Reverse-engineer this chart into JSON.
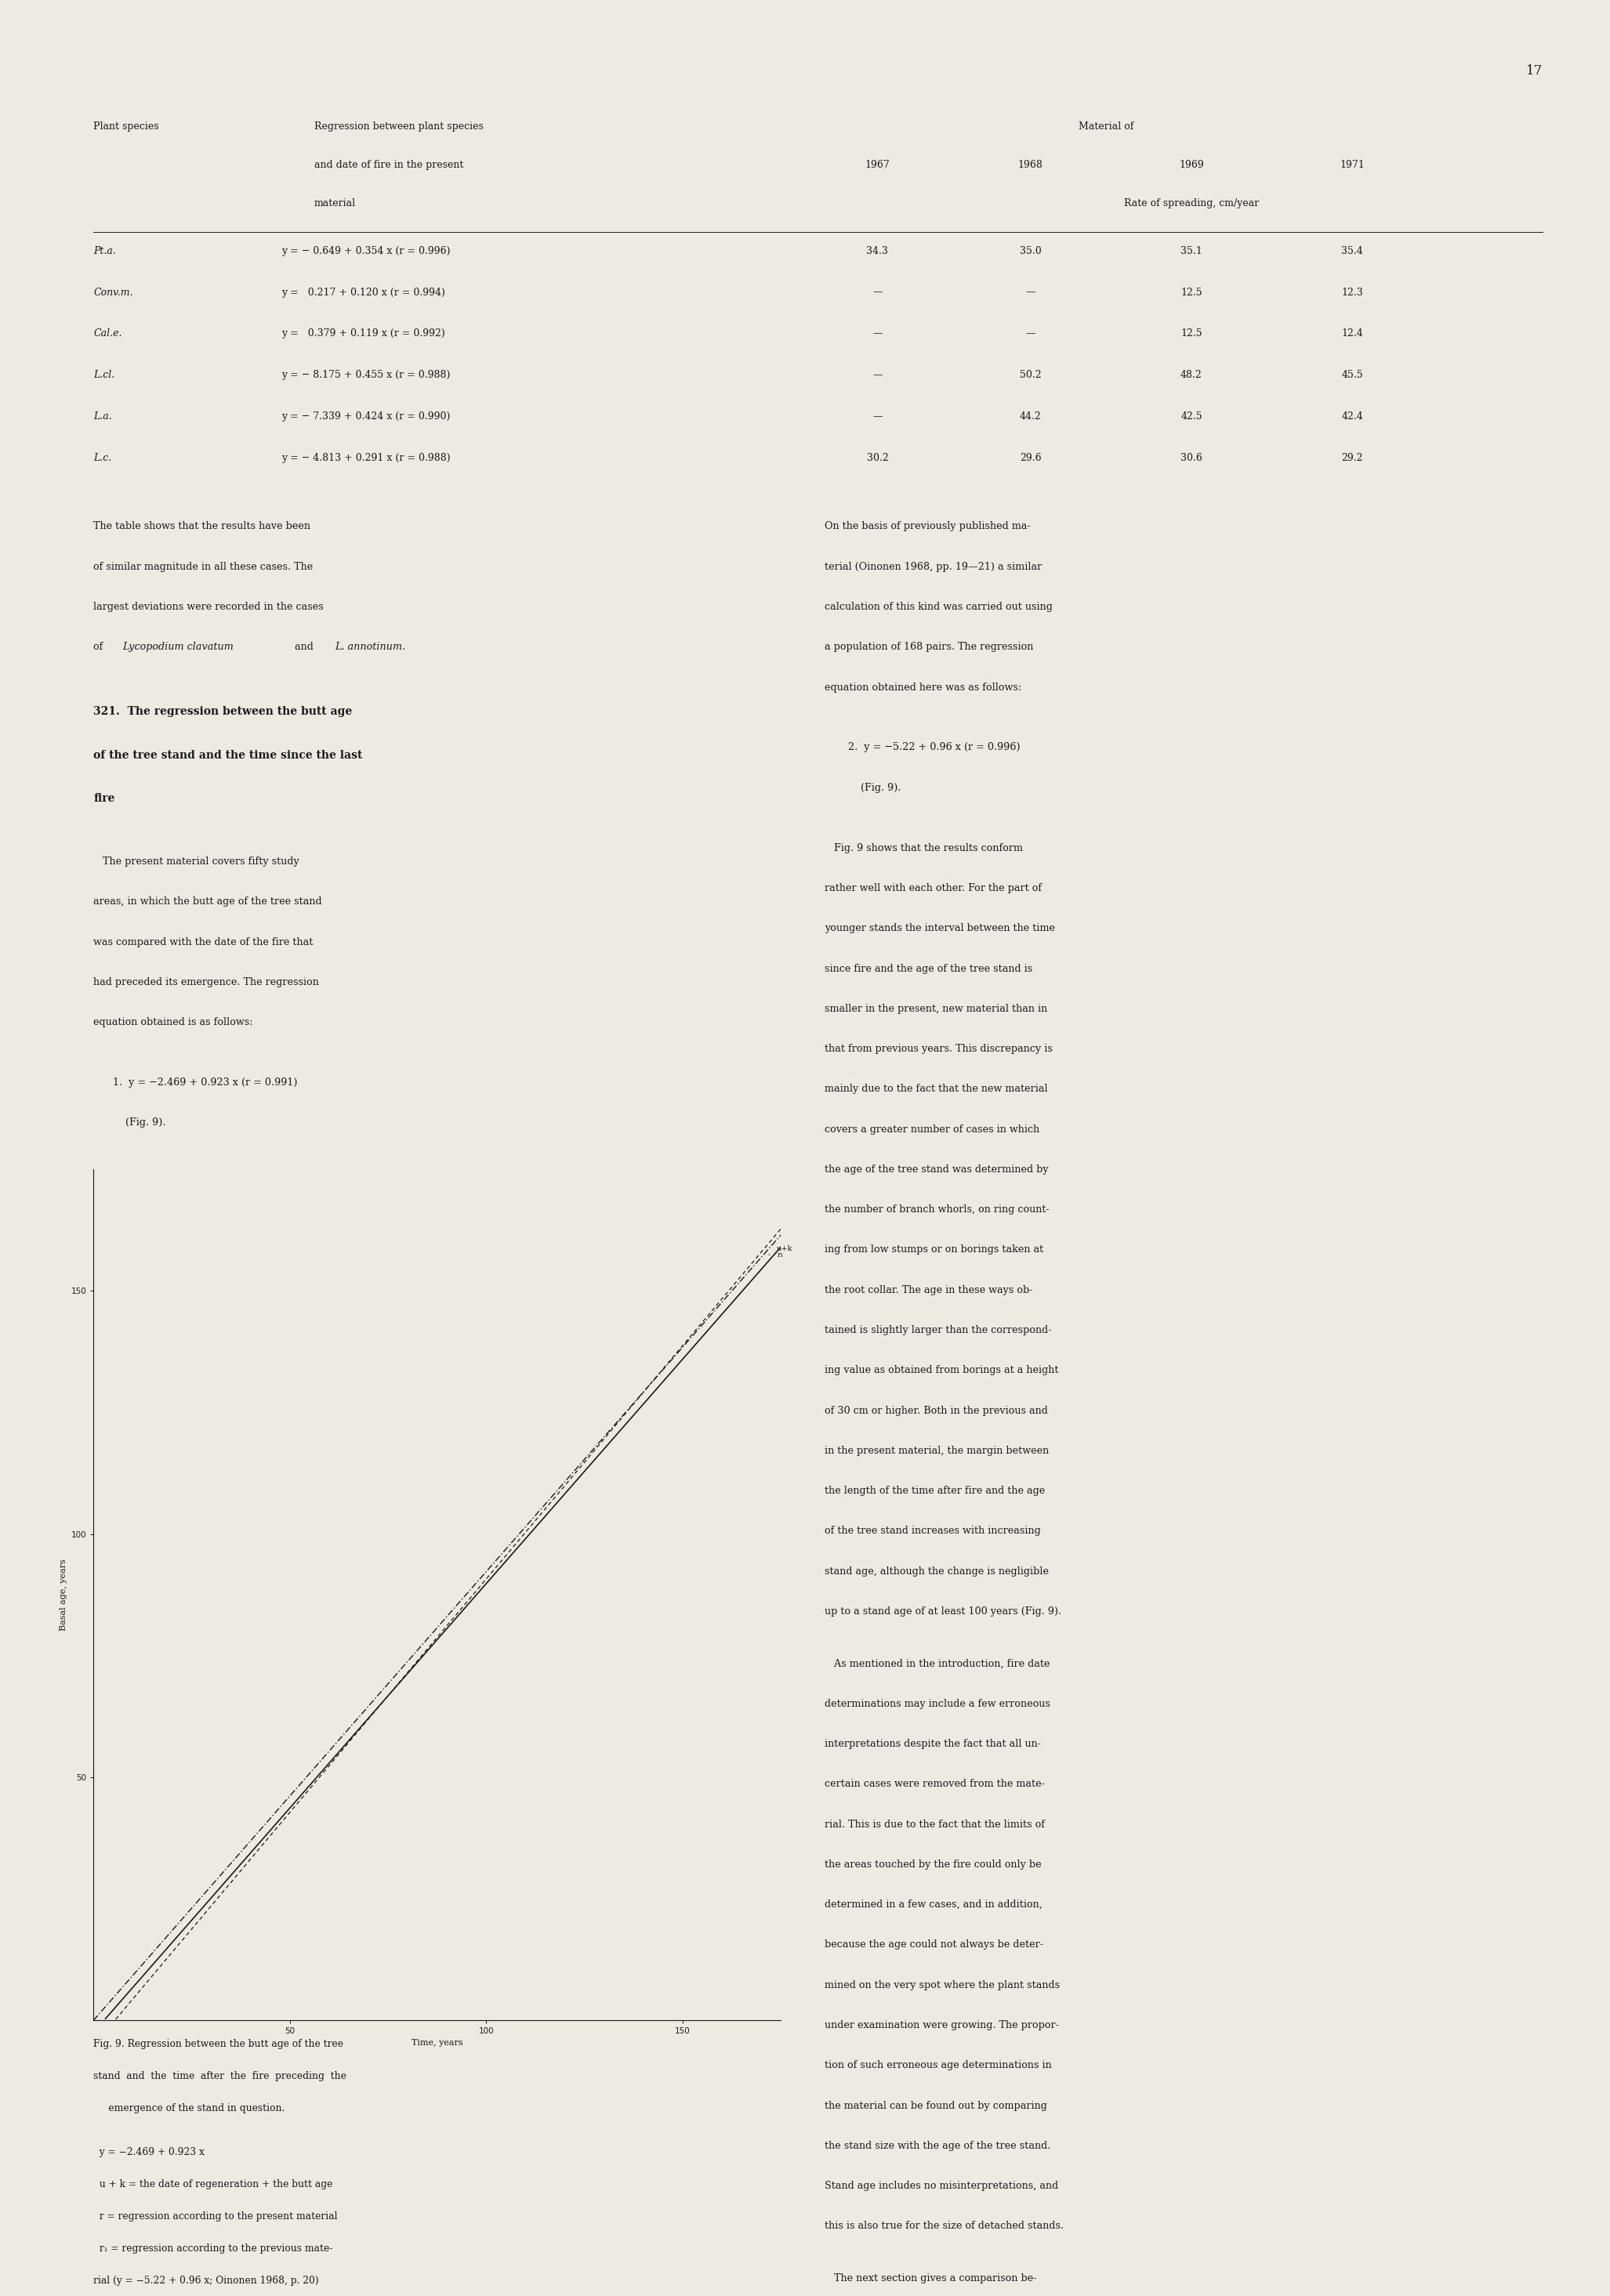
{
  "page_number": "17",
  "background_color": "#ede9e3",
  "text_color": "#1a1a1a",
  "table": {
    "rows": [
      {
        "species": "Pt.a.",
        "regression": "y = − 0.649 + 0.354 x (r = 0.996)",
        "v1967": "34.3",
        "v1968": "35.0",
        "v1969": "35.1",
        "v1971": "35.4"
      },
      {
        "species": "Conv.m.",
        "regression": "y =   0.217 + 0.120 x (r = 0.994)",
        "v1967": "—",
        "v1968": "—",
        "v1969": "12.5",
        "v1971": "12.3"
      },
      {
        "species": "Cal.e.",
        "regression": "y =   0.379 + 0.119 x (r = 0.992)",
        "v1967": "—",
        "v1968": "—",
        "v1969": "12.5",
        "v1971": "12.4"
      },
      {
        "species": "L.cl.",
        "regression": "y = − 8.175 + 0.455 x (r = 0.988)",
        "v1967": "—",
        "v1968": "50.2",
        "v1969": "48.2",
        "v1971": "45.5"
      },
      {
        "species": "L.a.",
        "regression": "y = − 7.339 + 0.424 x (r = 0.990)",
        "v1967": "—",
        "v1968": "44.2",
        "v1969": "42.5",
        "v1971": "42.4"
      },
      {
        "species": "L.c.",
        "regression": "y = − 4.813 + 0.291 x (r = 0.988)",
        "v1967": "30.2",
        "v1968": "29.6",
        "v1969": "30.6",
        "v1971": "29.2"
      }
    ]
  },
  "section_heading": "321.  The regression between the butt age\nof the tree stand and the time since the last\nfire",
  "equation1": "1.  y = −2.469 + 0.923 x (r = 0.991)\n    (Fig. 9).",
  "equation2": "2.  y = −5.22 + 0.96 x (r = 0.996)\n    (Fig. 9).",
  "paragraph1_right": "On the basis of previously published ma-\nterial (Oinonen 1968, pp. 19—21) a similar\ncalculation of this kind was carried out using\na population of 168 pairs. The regression\nequation obtained here was as follows:",
  "paragraph2_right": "   Fig. 9 shows that the results conform\nrather well with each other. For the part of\nyounger stands the interval between the time\nsince fire and the age of the tree stand is\nsmaller in the present, new material than in\nthat from previous years. This discrepancy is\nmainly due to the fact that the new material\ncovers a greater number of cases in which\nthe age of the tree stand was determined by\nthe number of branch whorls, on ring count-\ning from low stumps or on borings taken at\nthe root collar. The age in these ways ob-\ntained is slightly larger than the correspond-\ning value as obtained from borings at a height\nof 30 cm or higher. Both in the previous and\nin the present material, the margin between\nthe length of the time after fire and the age\nof the tree stand increases with increasing\nstand age, although the change is negligible\nup to a stand age of at least 100 years (Fig. 9).",
  "paragraph3_right": "   As mentioned in the introduction, fire date\ndeterminations may include a few erroneous\ninterpretations despite the fact that all un-\ncertain cases were removed from the mate-\nrial. This is due to the fact that the limits of\nthe areas touched by the fire could only be\ndetermined in a few cases, and in addition,\nbecause the age could not always be deter-\nmined on the very spot where the plant stands\nunder examination were growing. The propor-\ntion of such erroneous age determinations in\nthe material can be found out by comparing\nthe stand size with the age of the tree stand.\nStand age includes no misinterpretations, and\nthis is also true for the size of detached stands.",
  "paragraph4_right": "   The next section gives a comparison be-",
  "fig_caption_line1": "Fig. 9. Regression between the butt age of the tree",
  "fig_caption_line2": "stand  and  the  time  after  the  fire  preceding  the",
  "fig_caption_line3": "     emergence of the stand in question.",
  "fig_legend_line1": "  y = −2.469 + 0.923 x",
  "fig_legend_line2": "  u + k = the date of regeneration + the butt age",
  "fig_legend_line3": "  r = regression according to the present material",
  "fig_legend_line4": "  r₁ = regression according to the previous mate-",
  "fig_legend_line5": "rial (y = −5.22 + 0.96 x; Oinonen 1968, p. 20)",
  "fig_xlabel": "Time, years",
  "fig_ylabel": "Basal age, years",
  "fig_xlim": [
    0,
    175
  ],
  "fig_ylim": [
    0,
    175
  ],
  "fig_xticks": [
    50,
    100,
    150
  ],
  "fig_yticks": [
    50,
    100,
    150
  ]
}
